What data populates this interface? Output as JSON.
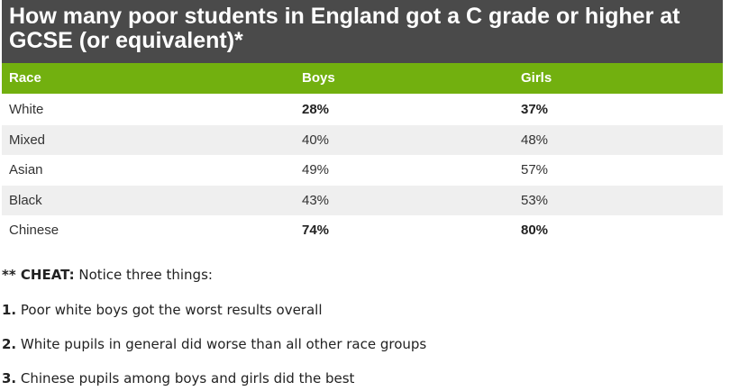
{
  "chart_data": {
    "type": "table",
    "title": "How many poor students in England got a C grade or higher at GCSE (or equivalent)*",
    "columns": [
      "Race",
      "Boys",
      "Girls"
    ],
    "rows": [
      {
        "race": "White",
        "boys": "28%",
        "girls": "37%",
        "highlight": true
      },
      {
        "race": "Mixed",
        "boys": "40%",
        "girls": "48%",
        "highlight": false
      },
      {
        "race": "Asian",
        "boys": "49%",
        "girls": "57%",
        "highlight": false
      },
      {
        "race": "Black",
        "boys": "43%",
        "girls": "53%",
        "highlight": false
      },
      {
        "race": "Chinese",
        "boys": "74%",
        "girls": "80%",
        "highlight": true
      }
    ],
    "header_color": "#72b00f",
    "title_background": "#4a4a4a"
  },
  "notes": {
    "intro_prefix": "** CHEAT:",
    "intro_text": " Notice three things:",
    "items": [
      {
        "num": "1.",
        "text": " Poor white boys got the worst results overall"
      },
      {
        "num": "2.",
        "text": " White pupils in general did worse than all other race groups"
      },
      {
        "num": "3.",
        "text": " Chinese pupils among boys and girls did the best"
      }
    ]
  }
}
